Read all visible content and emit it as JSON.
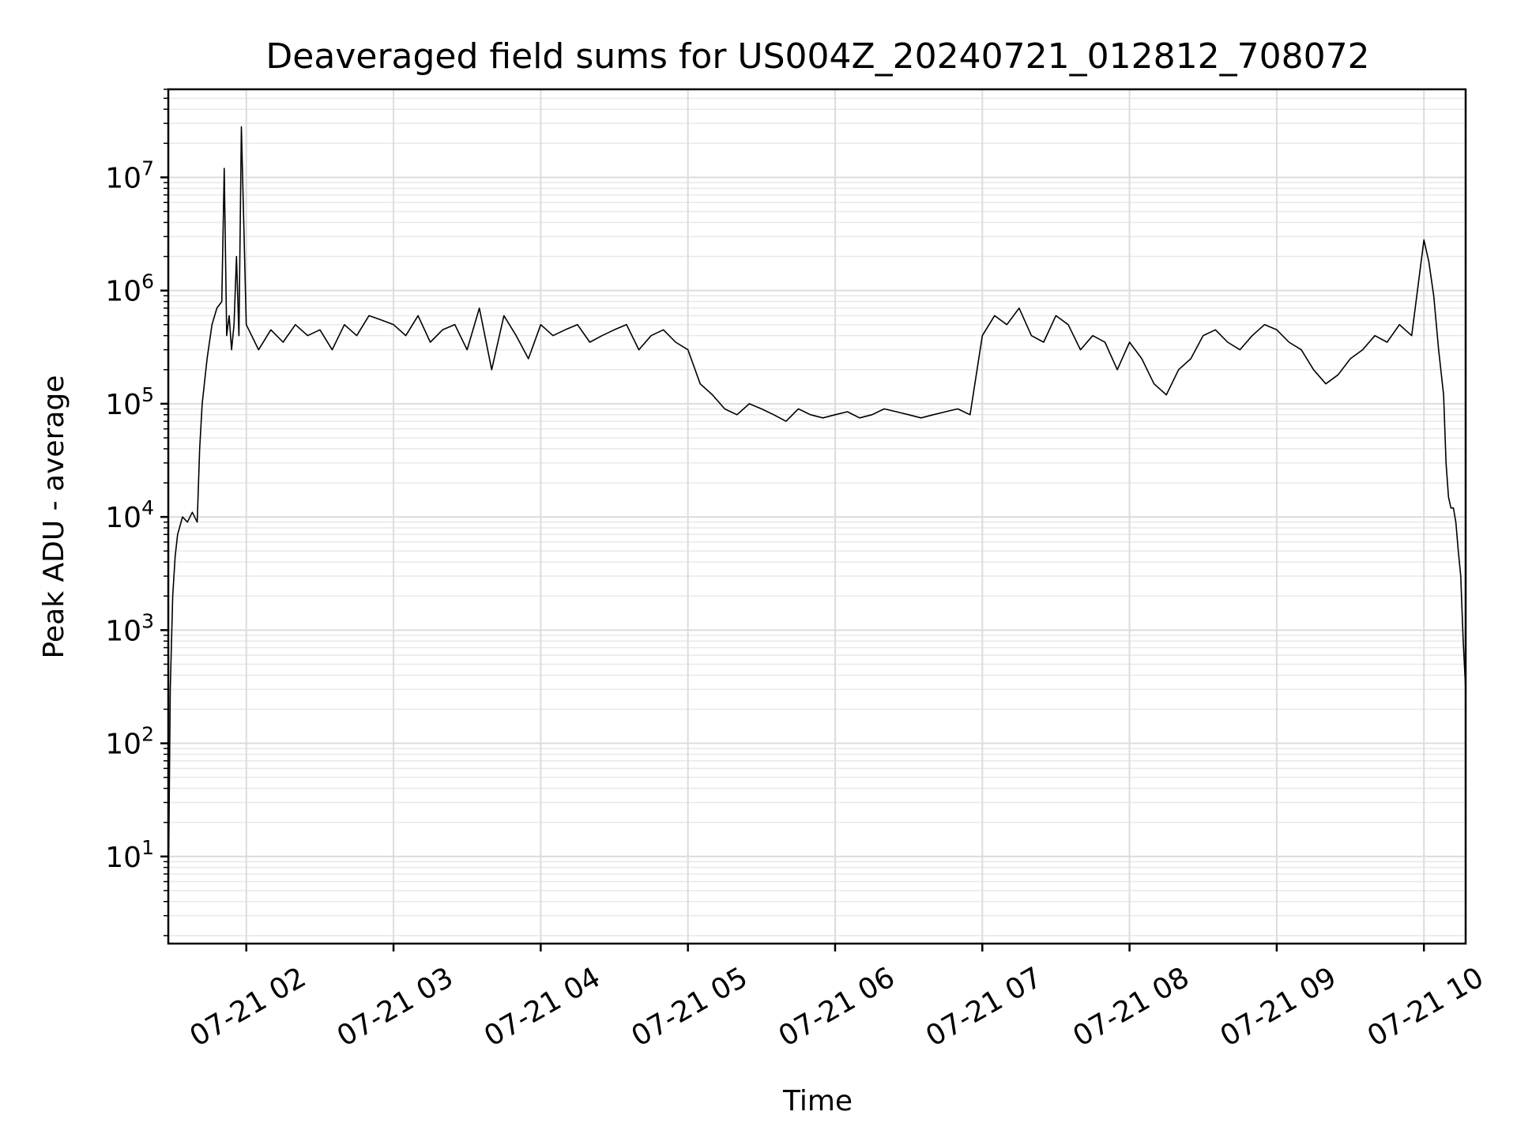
{
  "chart_data": {
    "type": "line",
    "title": "Deaveraged field sums for US004Z_20240721_012812_708072",
    "xlabel": "Time",
    "ylabel": "Peak ADU - average",
    "yscale": "log",
    "ylim": [
      1.7,
      60000000
    ],
    "xlim": [
      "2024-07-21 01:28:12",
      "2024-07-21 10:17:00"
    ],
    "x_ticks": [
      "2024-07-21 02:00",
      "2024-07-21 03:00",
      "2024-07-21 04:00",
      "2024-07-21 05:00",
      "2024-07-21 06:00",
      "2024-07-21 07:00",
      "2024-07-21 08:00",
      "2024-07-21 09:00",
      "2024-07-21 10:00"
    ],
    "x_tick_labels": [
      "07-21 02",
      "07-21 03",
      "07-21 04",
      "07-21 05",
      "07-21 06",
      "07-21 07",
      "07-21 08",
      "07-21 09",
      "07-21 10"
    ],
    "y_ticks": [
      {
        "value": 10,
        "base": "10",
        "exp": "1"
      },
      {
        "value": 100,
        "base": "10",
        "exp": "2"
      },
      {
        "value": 1000,
        "base": "10",
        "exp": "3"
      },
      {
        "value": 10000,
        "base": "10",
        "exp": "4"
      },
      {
        "value": 100000,
        "base": "10",
        "exp": "5"
      },
      {
        "value": 1000000,
        "base": "10",
        "exp": "6"
      },
      {
        "value": 10000000,
        "base": "10",
        "exp": "7"
      }
    ],
    "grid": true,
    "line_color": "#000000",
    "series": [
      {
        "x": [
          "2024-07-21 01:28:12",
          "2024-07-21 01:29:00",
          "2024-07-21 01:30:00",
          "2024-07-21 01:31:00",
          "2024-07-21 01:32:00",
          "2024-07-21 01:34:00",
          "2024-07-21 01:36:00",
          "2024-07-21 01:38:00",
          "2024-07-21 01:40:00",
          "2024-07-21 01:41:00",
          "2024-07-21 01:42:00",
          "2024-07-21 01:44:00",
          "2024-07-21 01:46:00",
          "2024-07-21 01:48:00",
          "2024-07-21 01:50:00",
          "2024-07-21 01:51:00",
          "2024-07-21 01:52:00",
          "2024-07-21 01:53:00",
          "2024-07-21 01:54:00",
          "2024-07-21 01:55:00",
          "2024-07-21 01:56:00",
          "2024-07-21 01:57:00",
          "2024-07-21 01:58:00",
          "2024-07-21 02:00:00",
          "2024-07-21 02:05:00",
          "2024-07-21 02:10:00",
          "2024-07-21 02:15:00",
          "2024-07-21 02:20:00",
          "2024-07-21 02:25:00",
          "2024-07-21 02:30:00",
          "2024-07-21 02:35:00",
          "2024-07-21 02:40:00",
          "2024-07-21 02:45:00",
          "2024-07-21 02:50:00",
          "2024-07-21 02:55:00",
          "2024-07-21 03:00:00",
          "2024-07-21 03:05:00",
          "2024-07-21 03:10:00",
          "2024-07-21 03:15:00",
          "2024-07-21 03:20:00",
          "2024-07-21 03:25:00",
          "2024-07-21 03:30:00",
          "2024-07-21 03:35:00",
          "2024-07-21 03:40:00",
          "2024-07-21 03:45:00",
          "2024-07-21 03:50:00",
          "2024-07-21 03:55:00",
          "2024-07-21 04:00:00",
          "2024-07-21 04:05:00",
          "2024-07-21 04:10:00",
          "2024-07-21 04:15:00",
          "2024-07-21 04:20:00",
          "2024-07-21 04:25:00",
          "2024-07-21 04:30:00",
          "2024-07-21 04:35:00",
          "2024-07-21 04:40:00",
          "2024-07-21 04:45:00",
          "2024-07-21 04:50:00",
          "2024-07-21 04:55:00",
          "2024-07-21 05:00:00",
          "2024-07-21 05:05:00",
          "2024-07-21 05:10:00",
          "2024-07-21 05:15:00",
          "2024-07-21 05:20:00",
          "2024-07-21 05:25:00",
          "2024-07-21 05:30:00",
          "2024-07-21 05:35:00",
          "2024-07-21 05:40:00",
          "2024-07-21 05:45:00",
          "2024-07-21 05:50:00",
          "2024-07-21 05:55:00",
          "2024-07-21 06:00:00",
          "2024-07-21 06:05:00",
          "2024-07-21 06:10:00",
          "2024-07-21 06:15:00",
          "2024-07-21 06:20:00",
          "2024-07-21 06:25:00",
          "2024-07-21 06:30:00",
          "2024-07-21 06:35:00",
          "2024-07-21 06:40:00",
          "2024-07-21 06:45:00",
          "2024-07-21 06:50:00",
          "2024-07-21 06:55:00",
          "2024-07-21 07:00:00",
          "2024-07-21 07:05:00",
          "2024-07-21 07:10:00",
          "2024-07-21 07:15:00",
          "2024-07-21 07:20:00",
          "2024-07-21 07:25:00",
          "2024-07-21 07:30:00",
          "2024-07-21 07:35:00",
          "2024-07-21 07:40:00",
          "2024-07-21 07:45:00",
          "2024-07-21 07:50:00",
          "2024-07-21 07:55:00",
          "2024-07-21 08:00:00",
          "2024-07-21 08:05:00",
          "2024-07-21 08:10:00",
          "2024-07-21 08:15:00",
          "2024-07-21 08:20:00",
          "2024-07-21 08:25:00",
          "2024-07-21 08:30:00",
          "2024-07-21 08:35:00",
          "2024-07-21 08:40:00",
          "2024-07-21 08:45:00",
          "2024-07-21 08:50:00",
          "2024-07-21 08:55:00",
          "2024-07-21 09:00:00",
          "2024-07-21 09:05:00",
          "2024-07-21 09:10:00",
          "2024-07-21 09:15:00",
          "2024-07-21 09:20:00",
          "2024-07-21 09:25:00",
          "2024-07-21 09:30:00",
          "2024-07-21 09:35:00",
          "2024-07-21 09:40:00",
          "2024-07-21 09:45:00",
          "2024-07-21 09:50:00",
          "2024-07-21 09:55:00",
          "2024-07-21 10:00:00",
          "2024-07-21 10:02:00",
          "2024-07-21 10:04:00",
          "2024-07-21 10:06:00",
          "2024-07-21 10:08:00",
          "2024-07-21 10:09:00",
          "2024-07-21 10:10:00",
          "2024-07-21 10:11:00",
          "2024-07-21 10:12:00",
          "2024-07-21 10:13:00",
          "2024-07-21 10:14:00",
          "2024-07-21 10:15:00",
          "2024-07-21 10:16:00",
          "2024-07-21 10:17:00"
        ],
        "y": [
          4,
          300,
          2000,
          4500,
          7000,
          10000,
          9000,
          11000,
          9000,
          40000,
          100000,
          250000,
          500000,
          700000,
          800000,
          12000000,
          400000,
          600000,
          300000,
          500000,
          2000000,
          400000,
          28000000,
          500000,
          300000,
          450000,
          350000,
          500000,
          400000,
          450000,
          300000,
          500000,
          400000,
          600000,
          550000,
          500000,
          400000,
          600000,
          350000,
          450000,
          500000,
          300000,
          700000,
          200000,
          600000,
          400000,
          250000,
          500000,
          400000,
          450000,
          500000,
          350000,
          400000,
          450000,
          500000,
          300000,
          400000,
          450000,
          350000,
          300000,
          150000,
          120000,
          90000,
          80000,
          100000,
          90000,
          80000,
          70000,
          90000,
          80000,
          75000,
          80000,
          85000,
          75000,
          80000,
          90000,
          85000,
          80000,
          75000,
          80000,
          85000,
          90000,
          80000,
          400000,
          600000,
          500000,
          700000,
          400000,
          350000,
          600000,
          500000,
          300000,
          400000,
          350000,
          200000,
          350000,
          250000,
          150000,
          120000,
          200000,
          250000,
          400000,
          450000,
          350000,
          300000,
          400000,
          500000,
          450000,
          350000,
          300000,
          200000,
          150000,
          180000,
          250000,
          300000,
          400000,
          350000,
          500000,
          400000,
          2800000,
          1800000,
          900000,
          300000,
          120000,
          30000,
          15000,
          12000,
          12000,
          9000,
          5000,
          3000,
          800,
          300
        ]
      }
    ]
  }
}
